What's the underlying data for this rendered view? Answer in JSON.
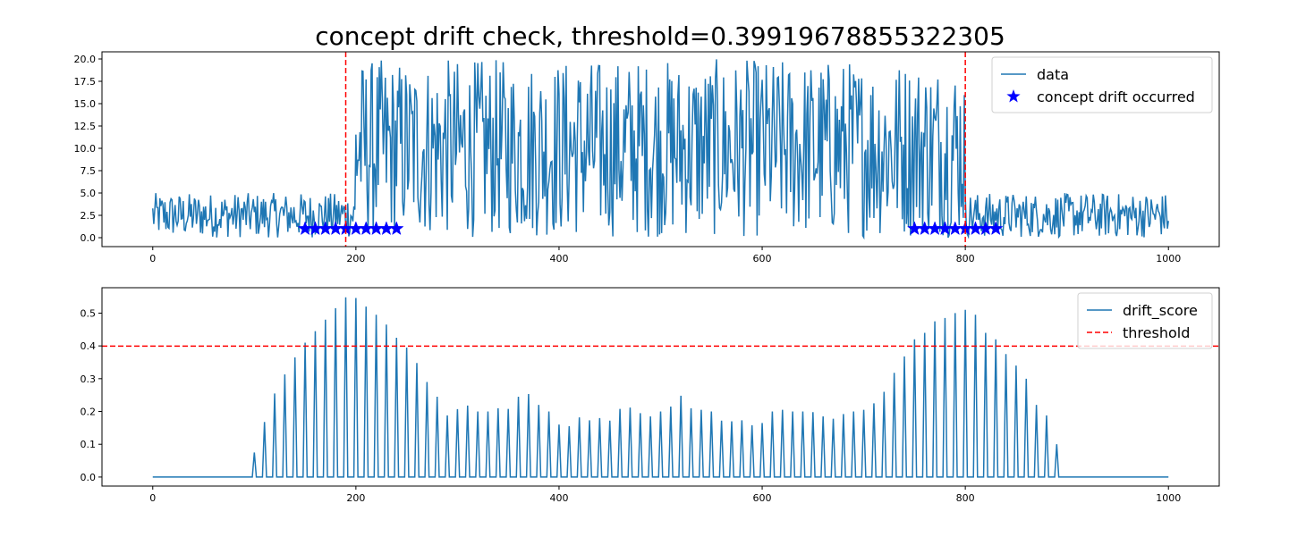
{
  "figure": {
    "title": "concept drift check, threshold=0.39919678855322305"
  },
  "chart_data": [
    {
      "type": "line",
      "name_key": "top",
      "xlim": [
        -50,
        1050
      ],
      "ylim": [
        -1.0,
        20.8
      ],
      "x_ticks": [
        0,
        200,
        400,
        600,
        800,
        1000
      ],
      "y_ticks": [
        0.0,
        2.5,
        5.0,
        7.5,
        10.0,
        12.5,
        15.0,
        17.5,
        20.0
      ],
      "y_tick_labels": [
        "0.0",
        "2.5",
        "5.0",
        "7.5",
        "10.0",
        "12.5",
        "15.0",
        "17.5",
        "20.0"
      ],
      "x_tick_labels": [
        "0",
        "200",
        "400",
        "600",
        "800",
        "1000"
      ],
      "series": [
        {
          "name": "data",
          "color": "#1f77b4",
          "segments": [
            {
              "x_start": 0,
              "x_end": 199,
              "low": 0.0,
              "high": 5.0
            },
            {
              "x_start": 200,
              "x_end": 799,
              "low": 0.0,
              "high": 20.0
            },
            {
              "x_start": 800,
              "x_end": 1000,
              "low": 0.0,
              "high": 5.0
            }
          ]
        },
        {
          "name": "concept drift occurred",
          "color": "#0000ff",
          "marker": "star",
          "x": [
            150,
            160,
            170,
            180,
            190,
            200,
            210,
            220,
            230,
            240,
            750,
            760,
            770,
            780,
            790,
            800,
            810,
            820,
            830
          ],
          "y": [
            1,
            1,
            1,
            1,
            1,
            1,
            1,
            1,
            1,
            1,
            1,
            1,
            1,
            1,
            1,
            1,
            1,
            1,
            1
          ]
        }
      ],
      "vlines": [
        190,
        800
      ],
      "vline_color": "#ff0000",
      "legend_placement": "top-right",
      "grid": false
    },
    {
      "type": "line",
      "name_key": "bottom",
      "xlim": [
        -50,
        1050
      ],
      "ylim": [
        -0.0275,
        0.5775
      ],
      "x_ticks": [
        0,
        200,
        400,
        600,
        800,
        1000
      ],
      "x_tick_labels": [
        "0",
        "200",
        "400",
        "600",
        "800",
        "1000"
      ],
      "y_ticks": [
        0.0,
        0.1,
        0.2,
        0.3,
        0.4,
        0.5
      ],
      "y_tick_labels": [
        "0.0",
        "0.1",
        "0.2",
        "0.3",
        "0.4",
        "0.5"
      ],
      "series": [
        {
          "name": "drift_score",
          "color": "#1f77b4",
          "peaks_x": [
            100,
            110,
            120,
            130,
            140,
            150,
            160,
            170,
            180,
            190,
            200,
            210,
            220,
            230,
            240,
            250,
            260,
            270,
            280,
            290,
            300,
            310,
            320,
            330,
            340,
            350,
            360,
            370,
            380,
            390,
            400,
            410,
            420,
            430,
            440,
            450,
            460,
            470,
            480,
            490,
            500,
            510,
            520,
            530,
            540,
            550,
            560,
            570,
            580,
            590,
            600,
            610,
            620,
            630,
            640,
            650,
            660,
            670,
            680,
            690,
            700,
            710,
            720,
            730,
            740,
            750,
            760,
            770,
            780,
            790,
            800,
            810,
            820,
            830,
            840,
            850,
            860,
            870,
            880,
            890
          ],
          "peaks_y": [
            0.075,
            0.168,
            0.255,
            0.313,
            0.365,
            0.41,
            0.445,
            0.48,
            0.515,
            0.548,
            0.546,
            0.52,
            0.495,
            0.465,
            0.425,
            0.395,
            0.348,
            0.29,
            0.245,
            0.188,
            0.207,
            0.218,
            0.2,
            0.2,
            0.21,
            0.208,
            0.245,
            0.253,
            0.22,
            0.2,
            0.16,
            0.155,
            0.182,
            0.173,
            0.18,
            0.172,
            0.208,
            0.212,
            0.195,
            0.185,
            0.2,
            0.215,
            0.248,
            0.21,
            0.205,
            0.2,
            0.172,
            0.17,
            0.173,
            0.158,
            0.165,
            0.2,
            0.205,
            0.2,
            0.2,
            0.198,
            0.185,
            0.178,
            0.192,
            0.2,
            0.205,
            0.225,
            0.26,
            0.318,
            0.368,
            0.42,
            0.44,
            0.475,
            0.485,
            0.5,
            0.51,
            0.495,
            0.44,
            0.42,
            0.375,
            0.34,
            0.3,
            0.22,
            0.188,
            0.1
          ]
        },
        {
          "name": "threshold",
          "color": "#ff0000",
          "dashed": true,
          "y": 0.39919678855322305
        }
      ],
      "legend_placement": "top-right",
      "grid": false
    }
  ]
}
